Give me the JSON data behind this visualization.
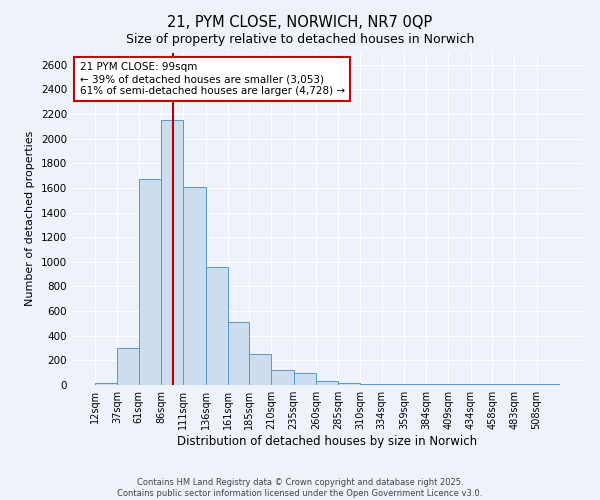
{
  "title": "21, PYM CLOSE, NORWICH, NR7 0QP",
  "subtitle": "Size of property relative to detached houses in Norwich",
  "xlabel": "Distribution of detached houses by size in Norwich",
  "ylabel": "Number of detached properties",
  "bar_labels": [
    "12sqm",
    "37sqm",
    "61sqm",
    "86sqm",
    "111sqm",
    "136sqm",
    "161sqm",
    "185sqm",
    "210sqm",
    "235sqm",
    "260sqm",
    "285sqm",
    "310sqm",
    "334sqm",
    "359sqm",
    "384sqm",
    "409sqm",
    "434sqm",
    "458sqm",
    "483sqm",
    "508sqm"
  ],
  "bar_values": [
    20,
    300,
    1670,
    2150,
    1610,
    960,
    510,
    250,
    120,
    95,
    30,
    20,
    10,
    5,
    5,
    5,
    5,
    5,
    5,
    5,
    5
  ],
  "bar_color": "#ccddf0",
  "bar_edge_color": "#5599cc",
  "ylim": [
    0,
    2700
  ],
  "yticks": [
    0,
    200,
    400,
    600,
    800,
    1000,
    1200,
    1400,
    1600,
    1800,
    2000,
    2200,
    2400,
    2600
  ],
  "x_starts": [
    12,
    37,
    61,
    86,
    111,
    136,
    161,
    185,
    210,
    235,
    260,
    285,
    310,
    334,
    359,
    384,
    409,
    434,
    458,
    483,
    508
  ],
  "red_line_x": 99,
  "annotation_title": "21 PYM CLOSE: 99sqm",
  "annotation_line1": "← 39% of detached houses are smaller (3,053)",
  "annotation_line2": "61% of semi-detached houses are larger (4,728) →",
  "annotation_box_color": "#ffffff",
  "annotation_box_edge_color": "#cc0000",
  "footer_line1": "Contains HM Land Registry data © Crown copyright and database right 2025.",
  "footer_line2": "Contains public sector information licensed under the Open Government Licence v3.0.",
  "bg_color": "#eef2fa",
  "grid_color": "#ffffff"
}
